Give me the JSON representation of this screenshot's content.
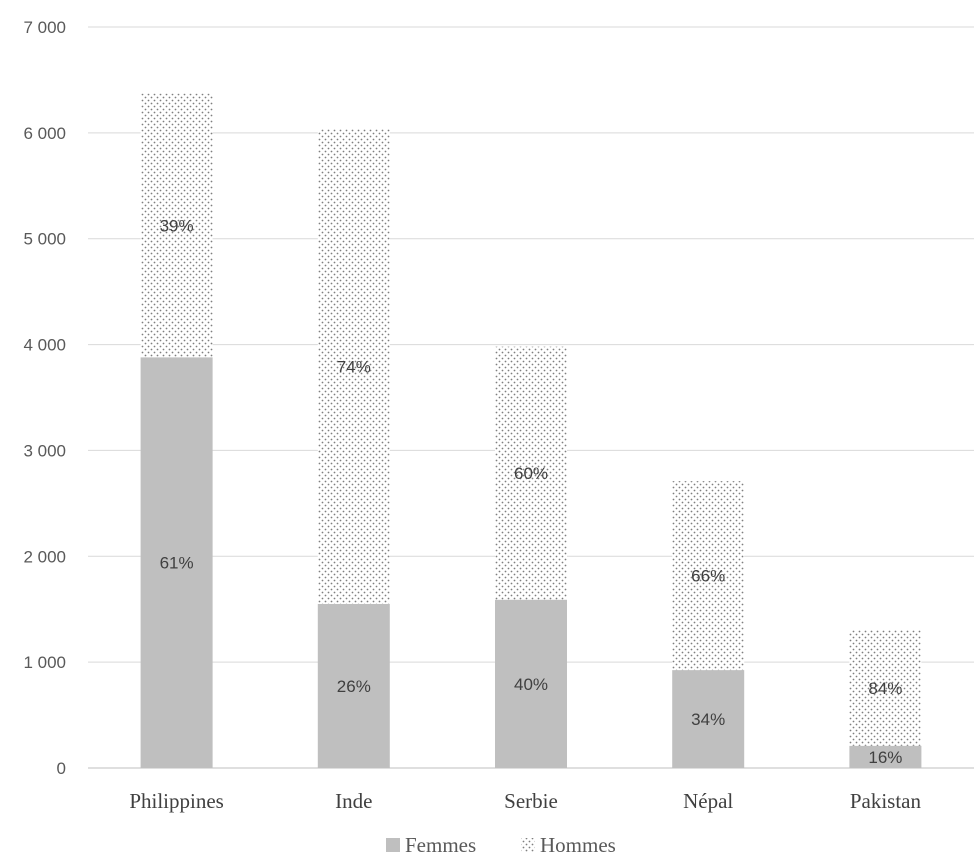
{
  "chart_data": {
    "type": "bar",
    "stacked": true,
    "categories": [
      "Philippines",
      "Inde",
      "Serbie",
      "Népal",
      "Pakistan"
    ],
    "series": [
      {
        "name": "Femmes",
        "values": [
          3880,
          1550,
          1590,
          925,
          210
        ],
        "labels": [
          "61%",
          "26%",
          "40%",
          "34%",
          "16%"
        ],
        "color": "#bfbfbf",
        "pattern": "solid"
      },
      {
        "name": "Hommes",
        "values": [
          2490,
          4490,
          2390,
          1785,
          1090
        ],
        "labels": [
          "39%",
          "74%",
          "60%",
          "66%",
          "84%"
        ],
        "color": "#7f7f7f",
        "pattern": "dotted"
      }
    ],
    "ylim": [
      0,
      7000
    ],
    "yticks": [
      "0",
      "1 000",
      "2 000",
      "3 000",
      "4 000",
      "5 000",
      "6 000",
      "7 000"
    ],
    "grid": true,
    "legend_position": "bottom"
  }
}
